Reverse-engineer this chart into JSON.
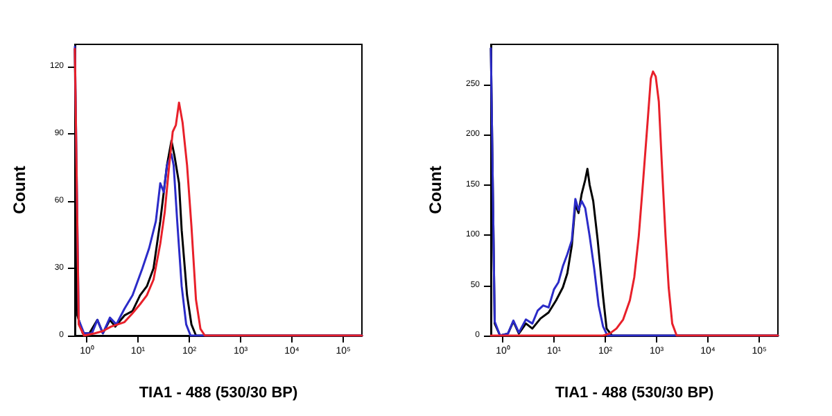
{
  "chart_data": [
    {
      "type": "line",
      "xlabel": "TIA1 - 488 (530/30 BP)",
      "ylabel": "Count",
      "log": "x",
      "xlim": [
        0.59,
        231000
      ],
      "xticks": [
        {
          "value": 1,
          "label": "10⁰"
        },
        {
          "value": 10,
          "label": "10¹"
        },
        {
          "value": 100,
          "label": "10²"
        },
        {
          "value": 1000,
          "label": "10³"
        },
        {
          "value": 10000,
          "label": "10⁴"
        },
        {
          "value": 100000,
          "label": "10⁵"
        }
      ],
      "ylim": [
        0,
        130
      ],
      "yticks": [
        0,
        30,
        60,
        90,
        120
      ],
      "grid": false,
      "marker": "none",
      "line_style": "solid",
      "series": [
        {
          "color": "#000000",
          "x": [
            0.59,
            0.66,
            0.84,
            1.13,
            1.62,
            2.07,
            2.84,
            3.61,
            5.46,
            7.85,
            11.0,
            14.9,
            20.1,
            27.2,
            36.7,
            44.9,
            51.7,
            63.1,
            71.1,
            90.5,
            110,
            135,
            231000
          ],
          "values": [
            128,
            9,
            1,
            1,
            7,
            1,
            7,
            4,
            9,
            11,
            18,
            22,
            30,
            51,
            76,
            87,
            80,
            68,
            47,
            18,
            5,
            0,
            0
          ]
        },
        {
          "color": "#2b2bc8",
          "x": [
            0.59,
            0.7,
            0.89,
            1.27,
            1.62,
            2.07,
            2.84,
            3.79,
            5.46,
            7.85,
            12.2,
            16.5,
            22.3,
            27.2,
            31.9,
            36.7,
            44.9,
            49.6,
            58.2,
            71.1,
            87.0,
            106,
            231000
          ],
          "values": [
            129,
            7,
            1,
            1,
            7,
            1,
            8,
            5,
            12,
            18,
            30,
            39,
            51,
            68,
            64,
            76,
            81,
            76,
            51,
            22,
            5,
            0,
            0
          ]
        },
        {
          "color": "#e8202a",
          "x": [
            0.59,
            0.7,
            0.89,
            1.44,
            2.07,
            2.98,
            5.46,
            7.85,
            11.0,
            14.9,
            20.1,
            27.2,
            33.2,
            40.6,
            47.6,
            54.8,
            63.1,
            74.1,
            90.5,
            110,
            135,
            165,
            201,
            231000
          ],
          "values": [
            128,
            5,
            0,
            1,
            2,
            4,
            6,
            10,
            14,
            18,
            25,
            41,
            55,
            76,
            91,
            94,
            104,
            95,
            76,
            49,
            16,
            3,
            0,
            0
          ]
        }
      ]
    },
    {
      "type": "line",
      "xlabel": "TIA1 - 488 (530/30 BP)",
      "ylabel": "Count",
      "log": "x",
      "xlim": [
        0.59,
        231000
      ],
      "xticks": [
        {
          "value": 1,
          "label": "10⁰"
        },
        {
          "value": 10,
          "label": "10¹"
        },
        {
          "value": 100,
          "label": "10²"
        },
        {
          "value": 1000,
          "label": "10³"
        },
        {
          "value": 10000,
          "label": "10⁴"
        },
        {
          "value": 100000,
          "label": "10⁵"
        }
      ],
      "ylim": [
        0,
        290
      ],
      "yticks": [
        0,
        50,
        100,
        150,
        200,
        250
      ],
      "grid": false,
      "marker": "none",
      "line_style": "solid",
      "series": [
        {
          "color": "#000000",
          "x": [
            0.59,
            0.7,
            0.89,
            1.27,
            1.62,
            2.07,
            2.84,
            3.79,
            5.46,
            7.85,
            11.0,
            14.9,
            18.2,
            22.3,
            26.1,
            30.1,
            34.6,
            40.6,
            44.9,
            49.6,
            58.2,
            71.1,
            90.5,
            106,
            135,
            231000
          ],
          "values": [
            286,
            12,
            0,
            2,
            14,
            2,
            12,
            7,
            17,
            23,
            35,
            48,
            62,
            90,
            131,
            122,
            141,
            155,
            166,
            150,
            134,
            95,
            39,
            7,
            0,
            0
          ]
        },
        {
          "color": "#2b2bc8",
          "x": [
            0.59,
            0.7,
            0.89,
            1.27,
            1.62,
            2.07,
            2.84,
            3.79,
            4.83,
            6.16,
            7.85,
            10,
            12.2,
            14.9,
            18.2,
            22.3,
            26.1,
            30.1,
            34.6,
            40.6,
            49.6,
            60.7,
            74.1,
            90.5,
            110,
            231000
          ],
          "values": [
            286,
            14,
            0,
            2,
            15,
            3,
            16,
            12,
            25,
            30,
            28,
            46,
            53,
            69,
            81,
            95,
            136,
            125,
            134,
            127,
            99,
            67,
            30,
            9,
            0,
            0
          ]
        },
        {
          "color": "#e8202a",
          "x": [
            0.59,
            90.5,
            122,
            165,
            223,
            301,
            367,
            449,
            548,
            670,
            771,
            851,
            961,
            1104,
            1270,
            1492,
            1718,
            2014,
            2459,
            231000
          ],
          "values": [
            0,
            0,
            2,
            7,
            16,
            35,
            58,
            99,
            155,
            214,
            256,
            263,
            258,
            233,
            169,
            99,
            48,
            12,
            0,
            0
          ]
        }
      ]
    }
  ]
}
